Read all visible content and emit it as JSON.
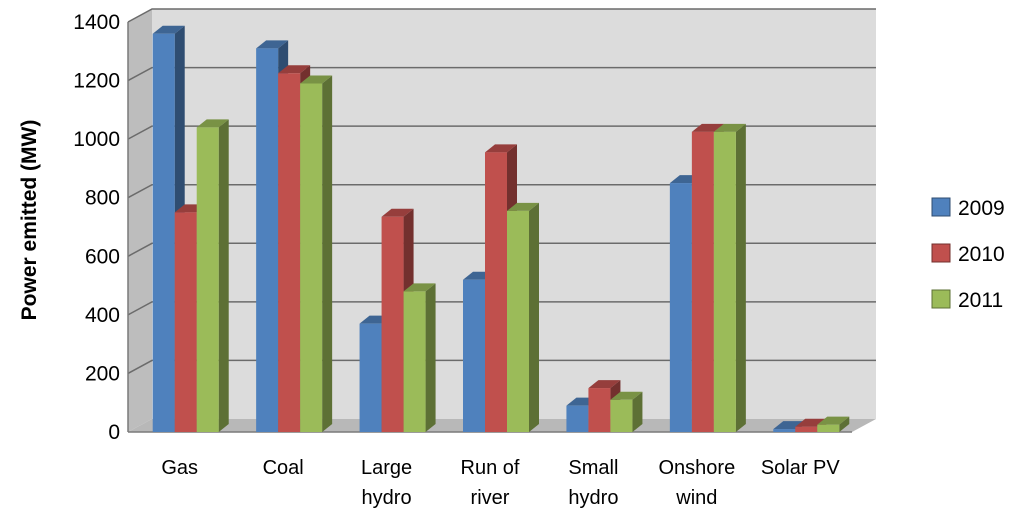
{
  "chart_data": {
    "type": "bar",
    "ylabel": "Power emitted (MW)",
    "xlabel": "",
    "ylim": [
      0,
      1400
    ],
    "yticks": [
      0,
      200,
      400,
      600,
      800,
      1000,
      1200,
      1400
    ],
    "categories": [
      [
        "Gas"
      ],
      [
        "Coal"
      ],
      [
        "Large",
        "hydro"
      ],
      [
        "Run of",
        "river"
      ],
      [
        "Small",
        "hydro"
      ],
      [
        "Onshore",
        "wind"
      ],
      [
        "Solar PV"
      ]
    ],
    "series": [
      {
        "name": "2009",
        "color": "#4F81BD",
        "values": [
          1360,
          1310,
          370,
          520,
          90,
          850,
          10
        ]
      },
      {
        "name": "2010",
        "color": "#C0504D",
        "values": [
          750,
          1225,
          735,
          955,
          150,
          1025,
          18
        ]
      },
      {
        "name": "2011",
        "color": "#9BBB59",
        "values": [
          1040,
          1190,
          480,
          755,
          110,
          1025,
          25
        ]
      }
    ],
    "grid": true,
    "legend_position": "right"
  }
}
